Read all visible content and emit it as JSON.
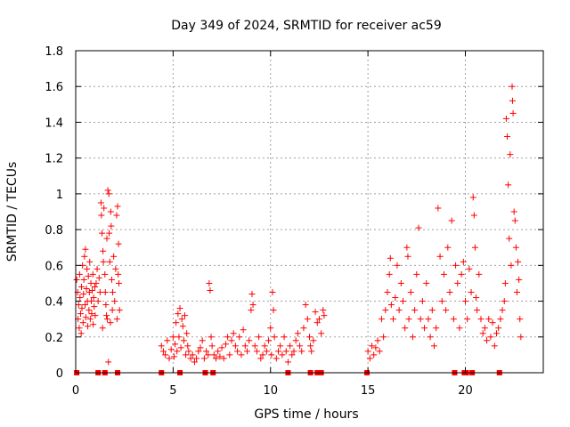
{
  "chart_data": {
    "type": "scatter",
    "title": "Day 349 of 2024, SRMTID for receiver ac59",
    "xlabel": "GPS time / hours",
    "ylabel": "SRMTID / TECUs",
    "xlim": [
      0,
      24
    ],
    "ylim": [
      0,
      1.8
    ],
    "xticks": [
      "0",
      "5",
      "10",
      "15",
      "20"
    ],
    "xtick_values": [
      0,
      5,
      10,
      15,
      20
    ],
    "yticks": [
      "0",
      "0.2",
      "0.4",
      "0.6",
      "0.8",
      "1",
      "1.2",
      "1.4",
      "1.6",
      "1.8"
    ],
    "ytick_values": [
      0,
      0.2,
      0.4,
      0.6,
      0.8,
      1.0,
      1.2,
      1.4,
      1.6,
      1.8
    ],
    "grid": true,
    "marker": "+",
    "color": "#ff0000",
    "zero_markers_x": [
      0.05,
      1.15,
      1.5,
      2.15,
      4.4,
      5.35,
      6.65,
      7.05,
      10.9,
      12.05,
      12.4,
      12.6,
      14.95,
      19.45,
      19.95,
      20.05,
      20.35,
      21.75
    ],
    "series": [
      {
        "name": "SRMTID",
        "points": [
          [
            0.05,
            0.52
          ],
          [
            0.1,
            0.45
          ],
          [
            0.12,
            0.3
          ],
          [
            0.15,
            0.38
          ],
          [
            0.18,
            0.25
          ],
          [
            0.2,
            0.55
          ],
          [
            0.22,
            0.42
          ],
          [
            0.25,
            0.33
          ],
          [
            0.28,
            0.22
          ],
          [
            0.3,
            0.48
          ],
          [
            0.32,
            0.36
          ],
          [
            0.35,
            0.6
          ],
          [
            0.38,
            0.28
          ],
          [
            0.4,
            0.44
          ],
          [
            0.42,
            0.52
          ],
          [
            0.45,
            0.65
          ],
          [
            0.48,
            0.38
          ],
          [
            0.5,
            0.69
          ],
          [
            0.52,
            0.31
          ],
          [
            0.55,
            0.47
          ],
          [
            0.58,
            0.58
          ],
          [
            0.6,
            0.4
          ],
          [
            0.62,
            0.26
          ],
          [
            0.65,
            0.54
          ],
          [
            0.68,
            0.35
          ],
          [
            0.7,
            0.45
          ],
          [
            0.72,
            0.62
          ],
          [
            0.75,
            0.3
          ],
          [
            0.78,
            0.5
          ],
          [
            0.8,
            0.4
          ],
          [
            0.82,
            0.33
          ],
          [
            0.85,
            0.46
          ],
          [
            0.88,
            0.55
          ],
          [
            0.9,
            0.27
          ],
          [
            0.92,
            0.42
          ],
          [
            0.95,
            0.37
          ],
          [
            0.98,
            0.48
          ],
          [
            1.0,
            0.32
          ],
          [
            1.05,
            0.5
          ],
          [
            1.1,
            0.58
          ],
          [
            1.15,
            0.4
          ],
          [
            1.2,
            0.53
          ],
          [
            1.25,
            0.45
          ],
          [
            1.3,
            0.95
          ],
          [
            1.32,
            0.88
          ],
          [
            1.35,
            0.78
          ],
          [
            1.38,
            0.25
          ],
          [
            1.4,
            0.68
          ],
          [
            1.42,
            0.62
          ],
          [
            1.45,
            0.92
          ],
          [
            1.5,
            0.55
          ],
          [
            1.52,
            0.45
          ],
          [
            1.55,
            0.38
          ],
          [
            1.58,
            0.32
          ],
          [
            1.6,
            0.75
          ],
          [
            1.62,
            0.3
          ],
          [
            1.65,
            1.02
          ],
          [
            1.68,
            0.06
          ],
          [
            1.7,
            1.0
          ],
          [
            1.72,
            0.78
          ],
          [
            1.75,
            0.62
          ],
          [
            1.78,
            0.28
          ],
          [
            1.8,
            0.9
          ],
          [
            1.82,
            0.82
          ],
          [
            1.85,
            0.52
          ],
          [
            1.88,
            0.35
          ],
          [
            1.9,
            0.45
          ],
          [
            1.95,
            0.65
          ],
          [
            2.0,
            0.4
          ],
          [
            2.05,
            0.58
          ],
          [
            2.1,
            0.88
          ],
          [
            2.12,
            0.3
          ],
          [
            2.15,
            0.93
          ],
          [
            2.18,
            0.55
          ],
          [
            2.2,
            0.72
          ],
          [
            2.22,
            0.5
          ],
          [
            2.25,
            0.35
          ],
          [
            4.4,
            0.15
          ],
          [
            4.5,
            0.12
          ],
          [
            4.6,
            0.1
          ],
          [
            4.7,
            0.18
          ],
          [
            4.8,
            0.08
          ],
          [
            4.9,
            0.13
          ],
          [
            5.0,
            0.2
          ],
          [
            5.05,
            0.09
          ],
          [
            5.1,
            0.16
          ],
          [
            5.15,
            0.28
          ],
          [
            5.2,
            0.12
          ],
          [
            5.25,
            0.33
          ],
          [
            5.3,
            0.2
          ],
          [
            5.35,
            0.36
          ],
          [
            5.4,
            0.14
          ],
          [
            5.45,
            0.3
          ],
          [
            5.5,
            0.26
          ],
          [
            5.55,
            0.18
          ],
          [
            5.6,
            0.32
          ],
          [
            5.65,
            0.1
          ],
          [
            5.7,
            0.22
          ],
          [
            5.75,
            0.15
          ],
          [
            5.8,
            0.12
          ],
          [
            5.9,
            0.08
          ],
          [
            6.0,
            0.1
          ],
          [
            6.1,
            0.06
          ],
          [
            6.2,
            0.08
          ],
          [
            6.3,
            0.12
          ],
          [
            6.4,
            0.14
          ],
          [
            6.5,
            0.18
          ],
          [
            6.6,
            0.08
          ],
          [
            6.7,
            0.12
          ],
          [
            6.8,
            0.1
          ],
          [
            6.85,
            0.5
          ],
          [
            6.9,
            0.46
          ],
          [
            6.95,
            0.2
          ],
          [
            7.0,
            0.15
          ],
          [
            7.1,
            0.1
          ],
          [
            7.2,
            0.08
          ],
          [
            7.3,
            0.12
          ],
          [
            7.4,
            0.09
          ],
          [
            7.5,
            0.14
          ],
          [
            7.6,
            0.08
          ],
          [
            7.7,
            0.16
          ],
          [
            7.8,
            0.2
          ],
          [
            7.9,
            0.1
          ],
          [
            8.0,
            0.18
          ],
          [
            8.1,
            0.22
          ],
          [
            8.2,
            0.15
          ],
          [
            8.3,
            0.12
          ],
          [
            8.4,
            0.2
          ],
          [
            8.5,
            0.1
          ],
          [
            8.6,
            0.24
          ],
          [
            8.7,
            0.15
          ],
          [
            8.8,
            0.12
          ],
          [
            8.9,
            0.18
          ],
          [
            9.0,
            0.35
          ],
          [
            9.05,
            0.44
          ],
          [
            9.1,
            0.38
          ],
          [
            9.2,
            0.15
          ],
          [
            9.3,
            0.12
          ],
          [
            9.4,
            0.2
          ],
          [
            9.5,
            0.08
          ],
          [
            9.6,
            0.1
          ],
          [
            9.7,
            0.15
          ],
          [
            9.8,
            0.12
          ],
          [
            9.9,
            0.18
          ],
          [
            10.0,
            0.25
          ],
          [
            10.05,
            0.1
          ],
          [
            10.1,
            0.45
          ],
          [
            10.15,
            0.35
          ],
          [
            10.2,
            0.2
          ],
          [
            10.3,
            0.08
          ],
          [
            10.4,
            0.12
          ],
          [
            10.5,
            0.15
          ],
          [
            10.6,
            0.1
          ],
          [
            10.7,
            0.2
          ],
          [
            10.8,
            0.12
          ],
          [
            10.9,
            0.06
          ],
          [
            11.0,
            0.15
          ],
          [
            11.1,
            0.1
          ],
          [
            11.2,
            0.12
          ],
          [
            11.3,
            0.18
          ],
          [
            11.4,
            0.22
          ],
          [
            11.5,
            0.15
          ],
          [
            11.6,
            0.12
          ],
          [
            11.7,
            0.25
          ],
          [
            11.8,
            0.38
          ],
          [
            11.9,
            0.3
          ],
          [
            12.0,
            0.2
          ],
          [
            12.05,
            0.15
          ],
          [
            12.1,
            0.12
          ],
          [
            12.2,
            0.18
          ],
          [
            12.3,
            0.34
          ],
          [
            12.4,
            0.28
          ],
          [
            12.5,
            0.3
          ],
          [
            12.6,
            0.22
          ],
          [
            12.7,
            0.35
          ],
          [
            12.75,
            0.32
          ],
          [
            15.0,
            0.12
          ],
          [
            15.1,
            0.08
          ],
          [
            15.2,
            0.15
          ],
          [
            15.3,
            0.1
          ],
          [
            15.4,
            0.14
          ],
          [
            15.5,
            0.18
          ],
          [
            15.6,
            0.12
          ],
          [
            15.7,
            0.3
          ],
          [
            15.8,
            0.2
          ],
          [
            15.9,
            0.35
          ],
          [
            16.0,
            0.45
          ],
          [
            16.1,
            0.55
          ],
          [
            16.15,
            0.64
          ],
          [
            16.2,
            0.38
          ],
          [
            16.3,
            0.3
          ],
          [
            16.4,
            0.42
          ],
          [
            16.5,
            0.6
          ],
          [
            16.6,
            0.35
          ],
          [
            16.7,
            0.5
          ],
          [
            16.8,
            0.4
          ],
          [
            16.9,
            0.25
          ],
          [
            17.0,
            0.7
          ],
          [
            17.05,
            0.65
          ],
          [
            17.1,
            0.3
          ],
          [
            17.2,
            0.45
          ],
          [
            17.3,
            0.2
          ],
          [
            17.4,
            0.35
          ],
          [
            17.5,
            0.55
          ],
          [
            17.6,
            0.81
          ],
          [
            17.7,
            0.3
          ],
          [
            17.8,
            0.4
          ],
          [
            17.9,
            0.25
          ],
          [
            18.0,
            0.5
          ],
          [
            18.1,
            0.3
          ],
          [
            18.2,
            0.2
          ],
          [
            18.3,
            0.35
          ],
          [
            18.4,
            0.15
          ],
          [
            18.5,
            0.25
          ],
          [
            18.6,
            0.92
          ],
          [
            18.7,
            0.65
          ],
          [
            18.8,
            0.4
          ],
          [
            18.9,
            0.55
          ],
          [
            19.0,
            0.35
          ],
          [
            19.1,
            0.7
          ],
          [
            19.2,
            0.45
          ],
          [
            19.3,
            0.85
          ],
          [
            19.4,
            0.3
          ],
          [
            19.5,
            0.6
          ],
          [
            19.6,
            0.5
          ],
          [
            19.7,
            0.25
          ],
          [
            19.8,
            0.55
          ],
          [
            19.9,
            0.62
          ],
          [
            20.0,
            0.4
          ],
          [
            20.1,
            0.3
          ],
          [
            20.2,
            0.58
          ],
          [
            20.3,
            0.45
          ],
          [
            20.4,
            0.98
          ],
          [
            20.45,
            0.88
          ],
          [
            20.5,
            0.7
          ],
          [
            20.55,
            0.42
          ],
          [
            20.6,
            0.35
          ],
          [
            20.7,
            0.55
          ],
          [
            20.8,
            0.3
          ],
          [
            20.9,
            0.22
          ],
          [
            21.0,
            0.25
          ],
          [
            21.1,
            0.18
          ],
          [
            21.2,
            0.3
          ],
          [
            21.3,
            0.2
          ],
          [
            21.4,
            0.28
          ],
          [
            21.5,
            0.15
          ],
          [
            21.6,
            0.22
          ],
          [
            21.7,
            0.25
          ],
          [
            21.8,
            0.3
          ],
          [
            21.9,
            0.35
          ],
          [
            22.0,
            0.4
          ],
          [
            22.05,
            0.5
          ],
          [
            22.1,
            1.42
          ],
          [
            22.15,
            1.32
          ],
          [
            22.2,
            1.05
          ],
          [
            22.25,
            0.75
          ],
          [
            22.3,
            1.22
          ],
          [
            22.35,
            0.6
          ],
          [
            22.4,
            1.6
          ],
          [
            22.42,
            1.52
          ],
          [
            22.45,
            1.45
          ],
          [
            22.5,
            0.9
          ],
          [
            22.55,
            0.85
          ],
          [
            22.6,
            0.7
          ],
          [
            22.65,
            0.45
          ],
          [
            22.7,
            0.62
          ],
          [
            22.75,
            0.52
          ],
          [
            22.8,
            0.3
          ],
          [
            22.85,
            0.2
          ]
        ]
      }
    ]
  }
}
